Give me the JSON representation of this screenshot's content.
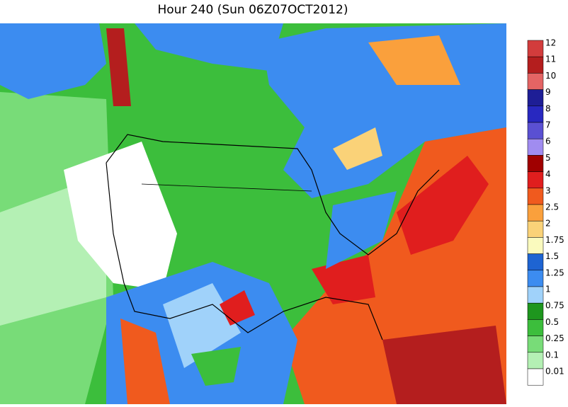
{
  "title": "Hour 240 (Sun 06Z07OCT2012)",
  "legend": [
    {
      "label": "12",
      "color": "#d23c3c"
    },
    {
      "label": "11",
      "color": "#b41e1e"
    },
    {
      "label": "10",
      "color": "#e46464"
    },
    {
      "label": "9",
      "color": "#1e1e96"
    },
    {
      "label": "8",
      "color": "#2828c0"
    },
    {
      "label": "7",
      "color": "#5a50d2"
    },
    {
      "label": "6",
      "color": "#a08cf0"
    },
    {
      "label": "5",
      "color": "#a00000"
    },
    {
      "label": "4",
      "color": "#e01e1e"
    },
    {
      "label": "3",
      "color": "#f05a1e"
    },
    {
      "label": "2.5",
      "color": "#faa03c"
    },
    {
      "label": "2",
      "color": "#fad278"
    },
    {
      "label": "1.75",
      "color": "#fafabe"
    },
    {
      "label": "1.5",
      "color": "#1e64d2"
    },
    {
      "label": "1.25",
      "color": "#3c8cf0"
    },
    {
      "label": "1",
      "color": "#a0d2fa"
    },
    {
      "label": "0.75",
      "color": "#1e961e"
    },
    {
      "label": "0.5",
      "color": "#3cbe3c"
    },
    {
      "label": "0.25",
      "color": "#78dc78"
    },
    {
      "label": "0.1",
      "color": "#b4f0b4"
    },
    {
      "label": "0.01",
      "color": "#ffffff"
    }
  ]
}
